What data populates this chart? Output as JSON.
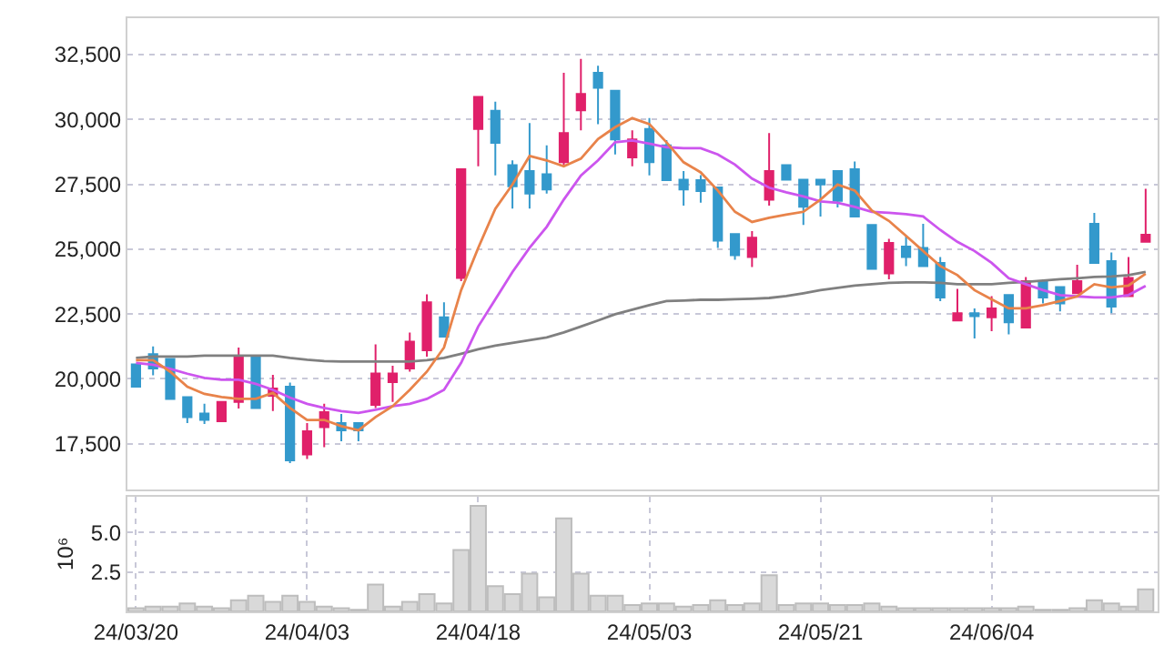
{
  "chart_data": [
    {
      "type": "candlestick",
      "categories": [
        null,
        null,
        null,
        null,
        null,
        null,
        null,
        null,
        null,
        null,
        null,
        null,
        null,
        null,
        null,
        null,
        null,
        null,
        null,
        null,
        null,
        null,
        null,
        null,
        null,
        null,
        null,
        null,
        null,
        null,
        null,
        null,
        null,
        null,
        null,
        null,
        null,
        null,
        null,
        null,
        null,
        null,
        null,
        null,
        null,
        null,
        null,
        null,
        null,
        null,
        null,
        null,
        null,
        null,
        null,
        null,
        null,
        null,
        null,
        null
      ],
      "ohlc": [
        [
          20560,
          20560,
          19700,
          19700
        ],
        [
          20950,
          21250,
          20140,
          20400
        ],
        [
          20770,
          20770,
          19200,
          19230
        ],
        [
          19300,
          19300,
          18300,
          18530
        ],
        [
          18670,
          19040,
          18260,
          18420
        ],
        [
          18370,
          19110,
          18370,
          19110
        ],
        [
          19110,
          21210,
          18860,
          20890
        ],
        [
          20890,
          20890,
          18880,
          18880
        ],
        [
          19350,
          20160,
          18760,
          19630
        ],
        [
          19700,
          19860,
          16760,
          16860
        ],
        [
          17090,
          18300,
          16910,
          17980
        ],
        [
          18140,
          19040,
          17370,
          18720
        ],
        [
          18300,
          18650,
          17600,
          18020
        ],
        [
          18300,
          18300,
          17600,
          18020
        ],
        [
          19000,
          21330,
          18880,
          20210
        ],
        [
          19880,
          20510,
          19110,
          20210
        ],
        [
          20400,
          21790,
          20280,
          21440
        ],
        [
          21100,
          23260,
          20860,
          22950
        ],
        [
          22370,
          22950,
          21630,
          21630
        ],
        [
          23890,
          28080,
          23770,
          28080
        ],
        [
          29630,
          30870,
          28190,
          30870
        ],
        [
          30330,
          30680,
          27840,
          29100
        ],
        [
          28240,
          28420,
          26560,
          27420
        ],
        [
          28010,
          29860,
          26560,
          27140
        ],
        [
          27890,
          29000,
          27140,
          27300
        ],
        [
          28350,
          31800,
          28190,
          29470
        ],
        [
          30350,
          32330,
          29580,
          30980
        ],
        [
          31800,
          32070,
          29820,
          31220
        ],
        [
          31100,
          31100,
          28650,
          29230
        ],
        [
          28540,
          29580,
          28190,
          29230
        ],
        [
          29630,
          30050,
          27840,
          28350
        ],
        [
          29000,
          29200,
          27660,
          27660
        ],
        [
          27680,
          28010,
          26680,
          27300
        ],
        [
          27660,
          27850,
          26790,
          27240
        ],
        [
          27380,
          27380,
          25050,
          25330
        ],
        [
          25580,
          25580,
          24590,
          24770
        ],
        [
          24700,
          25700,
          24310,
          25440
        ],
        [
          26910,
          29470,
          26680,
          28010
        ],
        [
          28240,
          28240,
          27680,
          27680
        ],
        [
          27680,
          27680,
          25930,
          26630
        ],
        [
          27680,
          27680,
          26260,
          27490
        ],
        [
          28010,
          28010,
          26610,
          26860
        ],
        [
          28080,
          28380,
          26260,
          26260
        ],
        [
          25930,
          25930,
          24240,
          24240
        ],
        [
          24070,
          25400,
          23840,
          25240
        ],
        [
          25100,
          25510,
          24350,
          24700
        ],
        [
          25050,
          25980,
          24350,
          24350
        ],
        [
          24470,
          24700,
          23000,
          23140
        ],
        [
          22250,
          23470,
          22250,
          22530
        ],
        [
          22530,
          22720,
          21560,
          22420
        ],
        [
          22370,
          23190,
          21840,
          22720
        ],
        [
          23230,
          23230,
          21720,
          22180
        ],
        [
          21980,
          23930,
          21980,
          23770
        ],
        [
          23770,
          23770,
          22910,
          23140
        ],
        [
          23540,
          23540,
          22600,
          22910
        ],
        [
          23300,
          24400,
          23300,
          23770
        ],
        [
          25980,
          26400,
          24470,
          24470
        ],
        [
          24540,
          24870,
          22530,
          22790
        ],
        [
          23190,
          24700,
          23190,
          23890
        ],
        [
          25280,
          27330,
          25280,
          25560
        ]
      ],
      "colors": [
        "#3399cc",
        "#3399cc",
        "#3399cc",
        "#3399cc",
        "#3399cc",
        "#e0206a",
        "#e0206a",
        "#3399cc",
        "#e0206a",
        "#3399cc",
        "#e0206a",
        "#e0206a",
        "#3399cc",
        "#3399cc",
        "#e0206a",
        "#e0206a",
        "#e0206a",
        "#e0206a",
        "#3399cc",
        "#e0206a",
        "#e0206a",
        "#3399cc",
        "#3399cc",
        "#3399cc",
        "#3399cc",
        "#e0206a",
        "#e0206a",
        "#3399cc",
        "#3399cc",
        "#e0206a",
        "#3399cc",
        "#3399cc",
        "#3399cc",
        "#3399cc",
        "#3399cc",
        "#3399cc",
        "#e0206a",
        "#e0206a",
        "#3399cc",
        "#3399cc",
        "#3399cc",
        "#3399cc",
        "#3399cc",
        "#3399cc",
        "#e0206a",
        "#3399cc",
        "#3399cc",
        "#3399cc",
        "#e0206a",
        "#3399cc",
        "#e0206a",
        "#3399cc",
        "#e0206a",
        "#3399cc",
        "#3399cc",
        "#e0206a",
        "#3399cc",
        "#3399cc",
        "#e0206a",
        "#e0206a"
      ],
      "series": [
        {
          "type": "line",
          "color": "#808080",
          "values": [
            20810,
            20860,
            20860,
            20860,
            20900,
            20900,
            20900,
            20900,
            20900,
            20810,
            20740,
            20690,
            20670,
            20670,
            20670,
            20670,
            20670,
            20720,
            20810,
            20970,
            21140,
            21280,
            21390,
            21490,
            21600,
            21790,
            22020,
            22250,
            22490,
            22670,
            22840,
            23000,
            23020,
            23050,
            23050,
            23070,
            23090,
            23120,
            23190,
            23300,
            23420,
            23510,
            23600,
            23650,
            23700,
            23720,
            23720,
            23700,
            23650,
            23650,
            23650,
            23700,
            23740,
            23790,
            23840,
            23880,
            23930,
            23950,
            24000,
            24120
          ]
        },
        {
          "type": "line",
          "color": "#cc55ee",
          "values": [
            20620,
            20550,
            20390,
            20200,
            20040,
            19970,
            19970,
            19810,
            19580,
            19280,
            19040,
            18880,
            18760,
            18690,
            18810,
            18950,
            19040,
            19230,
            19580,
            20620,
            22020,
            23070,
            24120,
            25050,
            25860,
            26910,
            27840,
            28420,
            29120,
            29190,
            29070,
            28930,
            28890,
            28890,
            28650,
            28260,
            27720,
            27370,
            27190,
            27030,
            26840,
            26790,
            26630,
            26440,
            26400,
            26350,
            26260,
            25740,
            25280,
            24930,
            24470,
            23880,
            23650,
            23420,
            23230,
            23180,
            23140,
            23140,
            23230,
            23580
          ]
        },
        {
          "type": "line",
          "color": "#e8834a",
          "values": [
            20720,
            20720,
            20280,
            19700,
            19420,
            19300,
            19230,
            19230,
            19460,
            18880,
            18420,
            18420,
            18180,
            18020,
            18530,
            18950,
            19580,
            20280,
            21210,
            23420,
            25050,
            26560,
            27490,
            28590,
            28420,
            28190,
            28490,
            29240,
            29700,
            30050,
            29820,
            29120,
            28350,
            27960,
            27260,
            26440,
            26050,
            26210,
            26330,
            26440,
            26910,
            27490,
            27260,
            26490,
            26090,
            25510,
            24930,
            24350,
            24000,
            23420,
            23070,
            22720,
            22720,
            22840,
            23000,
            23180,
            23650,
            23530,
            23600,
            24050
          ]
        }
      ],
      "ylim": [
        15750,
        33900
      ],
      "yticks": [
        {
          "value": 17500,
          "label": "17,500"
        },
        {
          "value": 20000,
          "label": "20,000"
        },
        {
          "value": 22500,
          "label": "22,500"
        },
        {
          "value": 25000,
          "label": "25,000"
        },
        {
          "value": 27500,
          "label": "27,500"
        },
        {
          "value": 30000,
          "label": "30,000"
        },
        {
          "value": 32500,
          "label": "32,500"
        }
      ],
      "grid": true,
      "tick_labels": "y"
    },
    {
      "type": "bar",
      "categories": [
        "24/03/20",
        null,
        null,
        null,
        null,
        null,
        null,
        null,
        null,
        null,
        "24/04/03",
        null,
        null,
        null,
        null,
        null,
        null,
        null,
        null,
        null,
        "24/04/18",
        null,
        null,
        null,
        null,
        null,
        null,
        null,
        null,
        null,
        "24/05/03",
        null,
        null,
        null,
        null,
        null,
        null,
        null,
        null,
        null,
        "24/05/21",
        null,
        null,
        null,
        null,
        null,
        null,
        null,
        null,
        null,
        "24/06/04",
        null,
        null,
        null,
        null,
        null,
        null,
        null,
        null,
        null
      ],
      "values": [
        0.2,
        0.3,
        0.3,
        0.5,
        0.3,
        0.2,
        0.7,
        1.0,
        0.6,
        1.0,
        0.6,
        0.3,
        0.2,
        0.1,
        1.7,
        0.3,
        0.6,
        1.1,
        0.5,
        3.9,
        6.7,
        1.6,
        1.1,
        2.4,
        0.9,
        5.9,
        2.4,
        1.0,
        1.0,
        0.4,
        0.5,
        0.5,
        0.3,
        0.4,
        0.7,
        0.4,
        0.5,
        2.3,
        0.4,
        0.5,
        0.5,
        0.4,
        0.4,
        0.5,
        0.3,
        0.2,
        0.2,
        0.2,
        0.2,
        0.2,
        0.2,
        0.2,
        0.3,
        0.1,
        0.1,
        0.2,
        0.7,
        0.5,
        0.3,
        1.4
      ],
      "color": "#d9d9d9",
      "ylabel": "10⁶",
      "ylim": [
        0,
        7.3
      ],
      "yticks": [
        {
          "value": 2.5,
          "label": "2.5"
        },
        {
          "value": 5.0,
          "label": "5.0"
        }
      ],
      "grid": true
    }
  ]
}
